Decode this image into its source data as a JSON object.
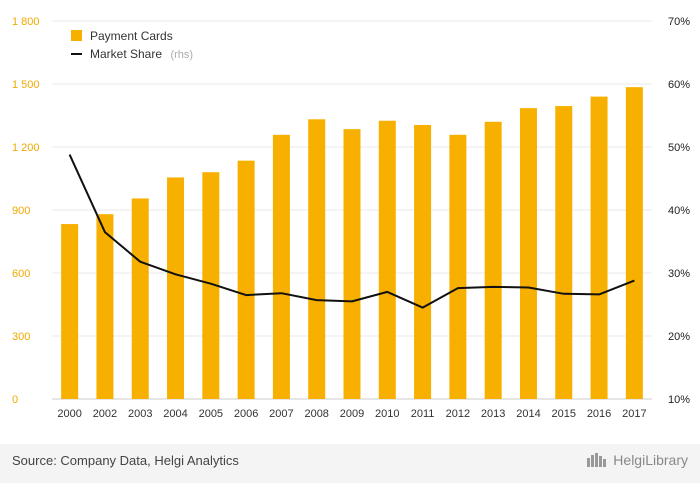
{
  "chart_data": {
    "type": "bar",
    "categories": [
      "2000",
      "2002",
      "2003",
      "2004",
      "2005",
      "2006",
      "2007",
      "2008",
      "2009",
      "2010",
      "2011",
      "2012",
      "2013",
      "2014",
      "2015",
      "2016",
      "2017"
    ],
    "series": [
      {
        "name": "Payment Cards",
        "type": "bar",
        "axis": "left",
        "color": "#f8b000",
        "values": [
          833,
          880,
          955,
          1055,
          1080,
          1135,
          1258,
          1332,
          1285,
          1325,
          1305,
          1258,
          1320,
          1385,
          1395,
          1440,
          1485
        ]
      },
      {
        "name": "Market Share",
        "type": "line",
        "axis": "right",
        "color": "#111111",
        "values": [
          48.8,
          36.5,
          31.8,
          29.8,
          28.3,
          26.5,
          26.8,
          25.7,
          25.5,
          27.0,
          24.5,
          27.6,
          27.8,
          27.7,
          26.7,
          26.6,
          28.8
        ]
      }
    ],
    "legend": {
      "position": "top-left",
      "rhs_note": "(rhs)"
    },
    "ylim": [
      0,
      1800
    ],
    "yticks": [
      "0",
      "300",
      "600",
      "900",
      "1 200",
      "1 500",
      "1 800"
    ],
    "y2lim": [
      10,
      70
    ],
    "y2ticks": [
      "10%",
      "20%",
      "30%",
      "40%",
      "50%",
      "60%",
      "70%"
    ],
    "grid": true,
    "colors": {
      "left_axis_text": "#f2a900",
      "bar": "#f8b000",
      "line": "#111111"
    }
  },
  "footer": {
    "source": "Source: Company Data, Helgi Analytics",
    "brand": "HelgiLibrary"
  }
}
